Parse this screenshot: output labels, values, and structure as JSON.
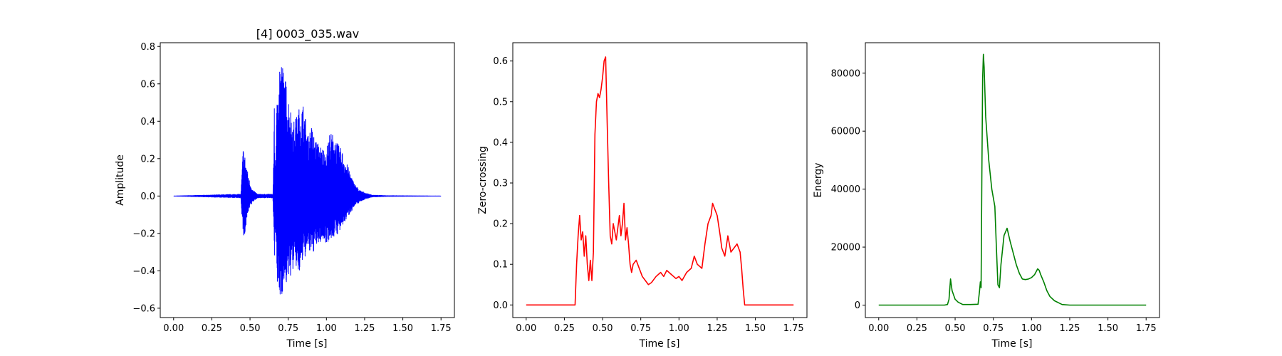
{
  "chart_data": [
    {
      "type": "line",
      "title": "[4] 0003_035.wav",
      "xlabel": "Time [s]",
      "ylabel": "Amplitude",
      "xlim": [
        -0.0875,
        1.8375
      ],
      "ylim": [
        -0.65,
        0.82
      ],
      "xticks": [
        0.0,
        0.25,
        0.5,
        0.75,
        1.0,
        1.25,
        1.5,
        1.75
      ],
      "xtick_labels": [
        "0.00",
        "0.25",
        "0.50",
        "0.75",
        "1.00",
        "1.25",
        "1.50",
        "1.75"
      ],
      "yticks": [
        -0.6,
        -0.4,
        -0.2,
        0.0,
        0.2,
        0.4,
        0.6,
        0.8
      ],
      "ytick_labels": [
        "−0.6",
        "−0.4",
        "−0.2",
        "0.0",
        "0.2",
        "0.4",
        "0.6",
        "0.8"
      ],
      "color": "#0000ff",
      "grid": false,
      "series": [
        {
          "kind": "envelope",
          "x": [
            0.0,
            0.44,
            0.455,
            0.46,
            0.47,
            0.48,
            0.5,
            0.52,
            0.55,
            0.6,
            0.65,
            0.66,
            0.663,
            0.68,
            0.69,
            0.7,
            0.72,
            0.75,
            0.78,
            0.8,
            0.82,
            0.85,
            0.88,
            0.9,
            0.93,
            0.97,
            1.0,
            1.02,
            1.05,
            1.08,
            1.1,
            1.12,
            1.15,
            1.18,
            1.22,
            1.26,
            1.3,
            1.4,
            1.75
          ],
          "upper": [
            0.0,
            0.01,
            0.26,
            0.25,
            0.2,
            0.15,
            0.07,
            0.03,
            0.01,
            0.01,
            0.01,
            0.51,
            0.15,
            0.6,
            0.76,
            0.76,
            0.68,
            0.55,
            0.4,
            0.42,
            0.47,
            0.5,
            0.32,
            0.38,
            0.3,
            0.26,
            0.25,
            0.34,
            0.33,
            0.27,
            0.25,
            0.2,
            0.14,
            0.07,
            0.03,
            0.015,
            0.005,
            0.002,
            0.0
          ],
          "lower": [
            0.0,
            -0.01,
            -0.22,
            -0.23,
            -0.2,
            -0.12,
            -0.06,
            -0.03,
            -0.01,
            -0.01,
            -0.01,
            -0.41,
            -0.15,
            -0.5,
            -0.58,
            -0.55,
            -0.5,
            -0.46,
            -0.4,
            -0.38,
            -0.44,
            -0.34,
            -0.3,
            -0.32,
            -0.28,
            -0.24,
            -0.25,
            -0.24,
            -0.22,
            -0.2,
            -0.18,
            -0.14,
            -0.1,
            -0.06,
            -0.03,
            -0.015,
            -0.005,
            -0.002,
            0.0
          ]
        }
      ]
    },
    {
      "type": "line",
      "title": "",
      "xlabel": "Time [s]",
      "ylabel": "Zero-crossing",
      "xlim": [
        -0.0875,
        1.8375
      ],
      "ylim": [
        -0.031,
        0.645
      ],
      "xticks": [
        0.0,
        0.25,
        0.5,
        0.75,
        1.0,
        1.25,
        1.5,
        1.75
      ],
      "xtick_labels": [
        "0.00",
        "0.25",
        "0.50",
        "0.75",
        "1.00",
        "1.25",
        "1.50",
        "1.75"
      ],
      "yticks": [
        0.0,
        0.1,
        0.2,
        0.3,
        0.4,
        0.5,
        0.6
      ],
      "ytick_labels": [
        "0.0",
        "0.1",
        "0.2",
        "0.3",
        "0.4",
        "0.5",
        "0.6"
      ],
      "color": "#ff0000",
      "grid": false,
      "series": [
        {
          "x": [
            0.0,
            0.32,
            0.33,
            0.34,
            0.35,
            0.36,
            0.37,
            0.38,
            0.39,
            0.4,
            0.41,
            0.42,
            0.43,
            0.44,
            0.45,
            0.46,
            0.47,
            0.48,
            0.49,
            0.5,
            0.51,
            0.52,
            0.53,
            0.54,
            0.55,
            0.56,
            0.57,
            0.58,
            0.59,
            0.6,
            0.61,
            0.62,
            0.63,
            0.64,
            0.65,
            0.66,
            0.67,
            0.68,
            0.69,
            0.7,
            0.72,
            0.74,
            0.76,
            0.78,
            0.8,
            0.82,
            0.85,
            0.88,
            0.9,
            0.92,
            0.95,
            0.98,
            1.0,
            1.02,
            1.05,
            1.08,
            1.1,
            1.12,
            1.15,
            1.17,
            1.19,
            1.21,
            1.22,
            1.23,
            1.25,
            1.27,
            1.28,
            1.3,
            1.32,
            1.34,
            1.36,
            1.38,
            1.4,
            1.41,
            1.42,
            1.43,
            1.44,
            1.75
          ],
          "y": [
            0.0,
            0.0,
            0.1,
            0.17,
            0.22,
            0.16,
            0.18,
            0.12,
            0.17,
            0.1,
            0.06,
            0.11,
            0.06,
            0.13,
            0.42,
            0.5,
            0.52,
            0.51,
            0.53,
            0.56,
            0.6,
            0.61,
            0.45,
            0.3,
            0.17,
            0.15,
            0.2,
            0.18,
            0.16,
            0.19,
            0.22,
            0.17,
            0.2,
            0.25,
            0.16,
            0.19,
            0.15,
            0.1,
            0.08,
            0.1,
            0.11,
            0.09,
            0.07,
            0.06,
            0.05,
            0.055,
            0.07,
            0.08,
            0.07,
            0.085,
            0.075,
            0.065,
            0.07,
            0.06,
            0.08,
            0.09,
            0.12,
            0.1,
            0.09,
            0.15,
            0.2,
            0.22,
            0.25,
            0.24,
            0.22,
            0.17,
            0.14,
            0.12,
            0.17,
            0.13,
            0.14,
            0.15,
            0.13,
            0.09,
            0.04,
            0.0,
            0.0,
            0.0
          ]
        }
      ]
    },
    {
      "type": "line",
      "title": "",
      "xlabel": "Time [s]",
      "ylabel": "Energy",
      "xlim": [
        -0.0875,
        1.8375
      ],
      "ylim": [
        -4300,
        90500
      ],
      "xticks": [
        0.0,
        0.25,
        0.5,
        0.75,
        1.0,
        1.25,
        1.5,
        1.75
      ],
      "xtick_labels": [
        "0.00",
        "0.25",
        "0.50",
        "0.75",
        "1.00",
        "1.25",
        "1.50",
        "1.75"
      ],
      "yticks": [
        0,
        20000,
        40000,
        60000,
        80000
      ],
      "ytick_labels": [
        "0",
        "20000",
        "40000",
        "60000",
        "80000"
      ],
      "color": "#008000",
      "grid": false,
      "series": [
        {
          "x": [
            0.0,
            0.43,
            0.45,
            0.46,
            0.47,
            0.48,
            0.49,
            0.5,
            0.52,
            0.55,
            0.6,
            0.65,
            0.66,
            0.665,
            0.67,
            0.675,
            0.68,
            0.685,
            0.69,
            0.7,
            0.72,
            0.74,
            0.76,
            0.77,
            0.78,
            0.79,
            0.8,
            0.82,
            0.84,
            0.86,
            0.88,
            0.9,
            0.92,
            0.94,
            0.96,
            0.98,
            1.0,
            1.02,
            1.04,
            1.05,
            1.06,
            1.08,
            1.1,
            1.12,
            1.15,
            1.2,
            1.25,
            1.75
          ],
          "y": [
            0,
            0,
            200,
            2000,
            9000,
            5000,
            3500,
            2000,
            1000,
            200,
            200,
            300,
            5000,
            8000,
            6000,
            45000,
            78000,
            86500,
            82000,
            65000,
            50000,
            40000,
            34000,
            20000,
            7000,
            6000,
            14000,
            24000,
            26500,
            22000,
            18000,
            14000,
            11000,
            9000,
            8800,
            9000,
            9500,
            10500,
            12500,
            12000,
            10500,
            8000,
            5000,
            3000,
            1500,
            200,
            0,
            0
          ]
        }
      ]
    }
  ]
}
